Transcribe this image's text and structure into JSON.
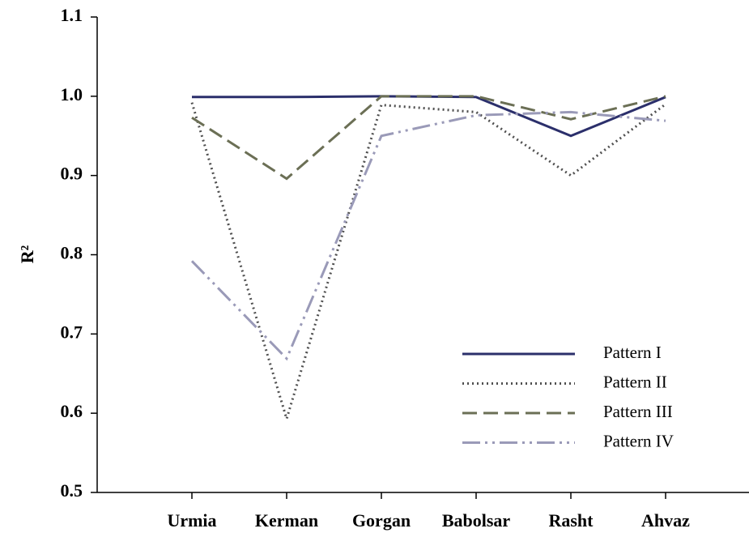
{
  "chart_data": {
    "type": "line",
    "y_label": "R²",
    "categories": [
      "Urmia",
      "Kerman",
      "Gorgan",
      "Babolsar",
      "Rasht",
      "Ahvaz"
    ],
    "series": [
      {
        "name": "Pattern I",
        "color": "#2b2f6b",
        "dash": "solid",
        "values": [
          0.999,
          0.999,
          1.0,
          0.999,
          0.95,
          0.999
        ]
      },
      {
        "name": "Pattern II",
        "color": "#505050",
        "dash": "dotted",
        "values": [
          0.992,
          0.593,
          0.989,
          0.98,
          0.9,
          0.99
        ]
      },
      {
        "name": "Pattern III",
        "color": "#6b6f55",
        "dash": "dashed",
        "values": [
          0.973,
          0.896,
          1.0,
          1.0,
          0.971,
          1.0
        ]
      },
      {
        "name": "Pattern IV",
        "color": "#9a9ab8",
        "dash": "dashdot",
        "values": [
          0.792,
          0.669,
          0.95,
          0.976,
          0.98,
          0.969
        ]
      }
    ],
    "ylim": [
      0.5,
      1.1
    ],
    "yticks": [
      0.5,
      0.6,
      0.7,
      0.8,
      0.9,
      {
        "value": 1,
        "label": "1.0"
      },
      1.1
    ],
    "grid": false,
    "legend": "lower right"
  }
}
